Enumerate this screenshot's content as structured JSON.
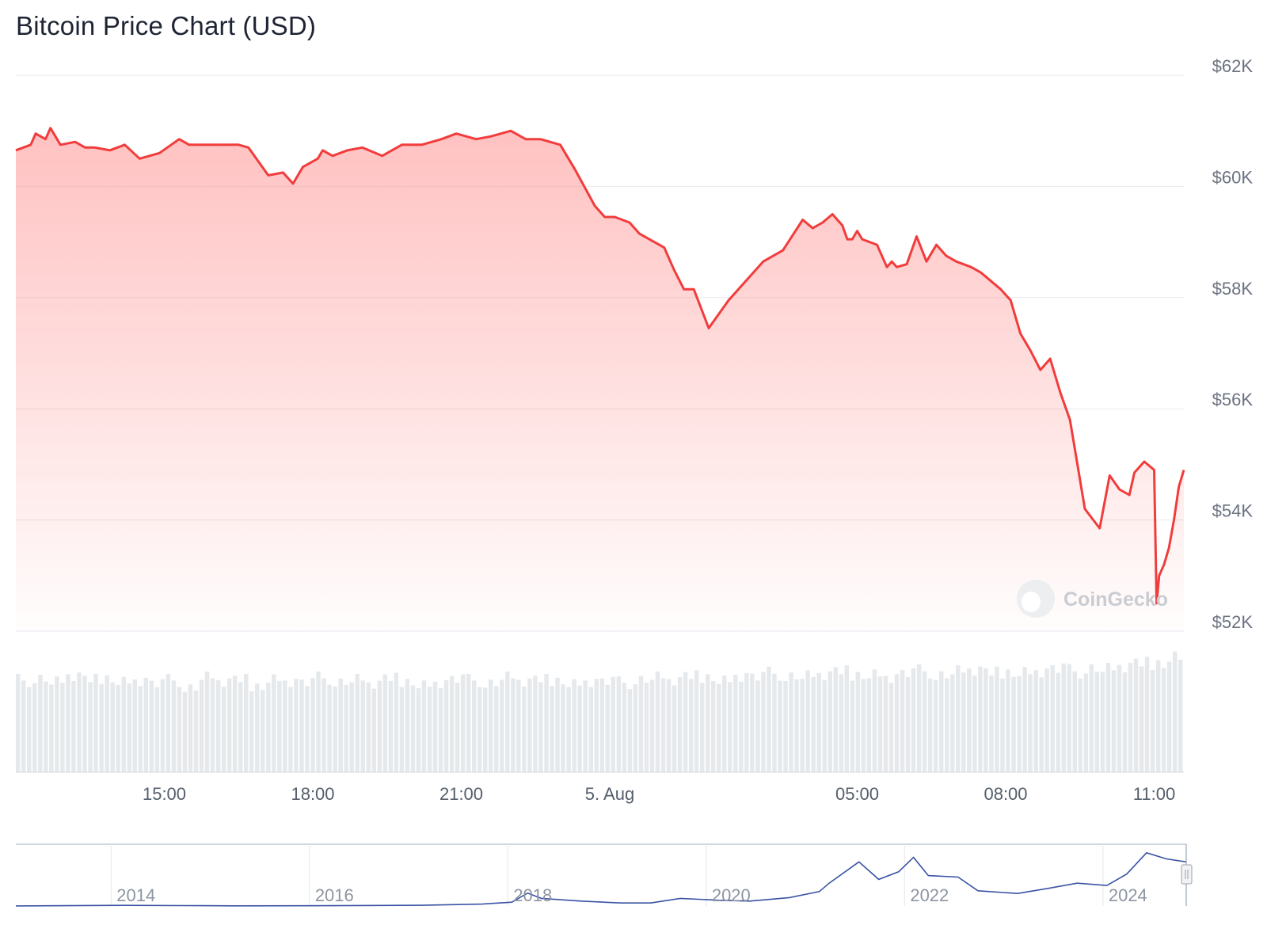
{
  "title": "Bitcoin Price Chart (USD)",
  "watermark": "CoinGecko",
  "chart_data": [
    {
      "type": "area",
      "title": "Bitcoin Price Chart (USD)",
      "xlabel": "",
      "ylabel": "",
      "y_unit": "USD",
      "ylim": [
        52000,
        62000
      ],
      "y_ticks": [
        52000,
        54000,
        56000,
        58000,
        60000,
        62000
      ],
      "y_tick_labels": [
        "$52K",
        "$54K",
        "$56K",
        "$58K",
        "$60K",
        "$62K"
      ],
      "x_range_hours": [
        12.0,
        35.6
      ],
      "x_ticks": [
        15,
        18,
        21,
        24,
        29,
        32,
        35
      ],
      "x_tick_labels": [
        "15:00",
        "18:00",
        "21:00",
        "5. Aug",
        "05:00",
        "08:00",
        "11:00"
      ],
      "grid": true,
      "line_color": "#f23c3c",
      "fill_color": "#ff9b9b",
      "series": [
        {
          "x": [
            12.0,
            12.3,
            12.4,
            12.6,
            12.7,
            12.9,
            13.2,
            13.4,
            13.6,
            13.9,
            14.2,
            14.5,
            14.9,
            15.3,
            15.5,
            15.8,
            16.2,
            16.5,
            16.7,
            17.1,
            17.4,
            17.6,
            17.8,
            18.1,
            18.2,
            18.4,
            18.7,
            19.0,
            19.4,
            19.8,
            20.2,
            20.6,
            20.9,
            21.3,
            21.6,
            21.8,
            22.0,
            22.3,
            22.6,
            23.0,
            23.3,
            23.7,
            23.9,
            24.1,
            24.4,
            24.6,
            24.8,
            24.9,
            25.1,
            25.3,
            25.5,
            25.7,
            26.0,
            26.4,
            26.8,
            27.1,
            27.5,
            27.9,
            28.1,
            28.3,
            28.5,
            28.7,
            28.8,
            28.9,
            29.0,
            29.1,
            29.4,
            29.6,
            29.7,
            29.8,
            30.0,
            30.2,
            30.4,
            30.6,
            30.8,
            31.0,
            31.3,
            31.5,
            31.7,
            31.9,
            32.1,
            32.2,
            32.3,
            32.5,
            32.7,
            32.9,
            33.1,
            33.3,
            33.6,
            33.9,
            34.1,
            34.3,
            34.5,
            34.6,
            34.8,
            35.0,
            35.05,
            35.1,
            35.2,
            35.3,
            35.4,
            35.5,
            35.6
          ],
          "y": [
            60650,
            60750,
            60950,
            60850,
            61050,
            60750,
            60800,
            60700,
            60700,
            60650,
            60750,
            60500,
            60600,
            60850,
            60750,
            60750,
            60750,
            60750,
            60700,
            60200,
            60250,
            60050,
            60350,
            60500,
            60650,
            60550,
            60650,
            60700,
            60550,
            60750,
            60750,
            60850,
            60950,
            60850,
            60900,
            60950,
            61000,
            60850,
            60850,
            60750,
            60300,
            59650,
            59450,
            59450,
            59350,
            59150,
            59050,
            59000,
            58900,
            58500,
            58150,
            58150,
            57450,
            57950,
            58350,
            58650,
            58850,
            59400,
            59250,
            59350,
            59500,
            59300,
            59050,
            59050,
            59200,
            59050,
            58950,
            58550,
            58650,
            58550,
            58600,
            59100,
            58650,
            58950,
            58750,
            58650,
            58550,
            58450,
            58300,
            58150,
            57950,
            57650,
            57350,
            57050,
            56700,
            56900,
            56300,
            55800,
            54200,
            53850,
            54800,
            54550,
            54450,
            54850,
            55050,
            54900,
            52500,
            53000,
            53200,
            53500,
            54000,
            54600,
            54900
          ]
        }
      ]
    },
    {
      "type": "bar",
      "title": "",
      "xlabel": "",
      "ylabel": "",
      "note_values": "relative trading volume per interval (no axis printed)",
      "x_range_hours": [
        12.0,
        35.6
      ],
      "bar_color": "#e6e9ec",
      "series": [
        {
          "values": [
            0.8,
            0.82,
            0.78,
            0.84,
            0.8,
            0.83,
            0.79,
            0.81,
            0.77,
            0.8,
            0.74,
            0.82,
            0.79,
            0.8,
            0.76,
            0.81,
            0.8,
            0.78,
            0.82,
            0.79,
            0.8,
            0.77,
            0.81,
            0.8,
            0.76,
            0.79,
            0.81,
            0.8,
            0.78,
            0.82,
            0.79,
            0.8,
            0.81,
            0.77,
            0.8,
            0.79,
            0.78,
            0.81,
            0.82,
            0.8,
            0.83,
            0.84,
            0.8,
            0.85,
            0.83,
            0.86,
            0.84,
            0.83,
            0.85,
            0.87,
            0.86,
            0.85,
            0.84,
            0.86,
            0.88,
            0.85,
            0.87,
            0.89,
            0.86,
            0.88,
            0.87,
            0.89,
            0.9,
            0.88,
            0.91,
            0.89,
            0.92,
            0.94,
            0.96,
            1.0
          ]
        }
      ]
    },
    {
      "type": "line",
      "title": "",
      "xlabel": "",
      "ylabel": "",
      "note_values": "navigator overview, approximate price in USD",
      "x_range": [
        2012.8,
        2024.6
      ],
      "x_ticks": [
        2014,
        2016,
        2018,
        2020,
        2022,
        2024
      ],
      "x_tick_labels": [
        "2014",
        "2016",
        "2018",
        "2020",
        "2022",
        "2024"
      ],
      "ylim": [
        0,
        75000
      ],
      "line_color": "#3a53a4",
      "series": [
        {
          "x": [
            2012.8,
            2013.9,
            2014.5,
            2015.0,
            2016.0,
            2016.9,
            2017.5,
            2017.8,
            2017.96,
            2018.1,
            2018.5,
            2018.9,
            2019.2,
            2019.5,
            2019.9,
            2020.2,
            2020.6,
            2020.9,
            2021.0,
            2021.3,
            2021.5,
            2021.7,
            2021.85,
            2022.0,
            2022.3,
            2022.5,
            2022.9,
            2023.2,
            2023.5,
            2023.8,
            2024.0,
            2024.2,
            2024.4,
            2024.6
          ],
          "y": [
            100,
            800,
            500,
            250,
            450,
            900,
            2500,
            5000,
            17000,
            10000,
            6500,
            4000,
            4000,
            10000,
            7500,
            6500,
            11000,
            19000,
            30000,
            58000,
            35000,
            45000,
            64000,
            40000,
            38000,
            20000,
            16500,
            23000,
            30000,
            27000,
            42000,
            70000,
            62000,
            58000
          ]
        }
      ]
    }
  ]
}
